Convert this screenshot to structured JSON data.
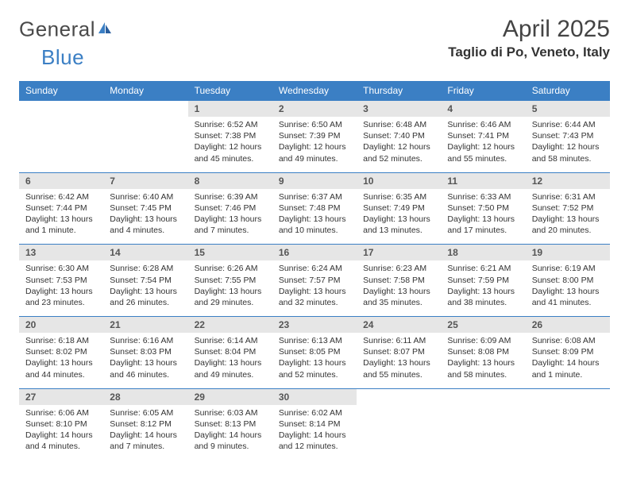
{
  "brand": {
    "general": "General",
    "blue": "Blue"
  },
  "title": "April 2025",
  "location": "Taglio di Po, Veneto, Italy",
  "colors": {
    "header_bg": "#3b7fc4",
    "header_text": "#ffffff",
    "daynum_bg": "#e6e6e6",
    "accent_line": "#3b7fc4",
    "text": "#333333",
    "logo_gray": "#4a4a4a",
    "logo_blue": "#3b7fc4"
  },
  "weekdays": [
    "Sunday",
    "Monday",
    "Tuesday",
    "Wednesday",
    "Thursday",
    "Friday",
    "Saturday"
  ],
  "weeks": [
    [
      null,
      null,
      {
        "n": "1",
        "sunrise": "Sunrise: 6:52 AM",
        "sunset": "Sunset: 7:38 PM",
        "daylight": "Daylight: 12 hours and 45 minutes."
      },
      {
        "n": "2",
        "sunrise": "Sunrise: 6:50 AM",
        "sunset": "Sunset: 7:39 PM",
        "daylight": "Daylight: 12 hours and 49 minutes."
      },
      {
        "n": "3",
        "sunrise": "Sunrise: 6:48 AM",
        "sunset": "Sunset: 7:40 PM",
        "daylight": "Daylight: 12 hours and 52 minutes."
      },
      {
        "n": "4",
        "sunrise": "Sunrise: 6:46 AM",
        "sunset": "Sunset: 7:41 PM",
        "daylight": "Daylight: 12 hours and 55 minutes."
      },
      {
        "n": "5",
        "sunrise": "Sunrise: 6:44 AM",
        "sunset": "Sunset: 7:43 PM",
        "daylight": "Daylight: 12 hours and 58 minutes."
      }
    ],
    [
      {
        "n": "6",
        "sunrise": "Sunrise: 6:42 AM",
        "sunset": "Sunset: 7:44 PM",
        "daylight": "Daylight: 13 hours and 1 minute."
      },
      {
        "n": "7",
        "sunrise": "Sunrise: 6:40 AM",
        "sunset": "Sunset: 7:45 PM",
        "daylight": "Daylight: 13 hours and 4 minutes."
      },
      {
        "n": "8",
        "sunrise": "Sunrise: 6:39 AM",
        "sunset": "Sunset: 7:46 PM",
        "daylight": "Daylight: 13 hours and 7 minutes."
      },
      {
        "n": "9",
        "sunrise": "Sunrise: 6:37 AM",
        "sunset": "Sunset: 7:48 PM",
        "daylight": "Daylight: 13 hours and 10 minutes."
      },
      {
        "n": "10",
        "sunrise": "Sunrise: 6:35 AM",
        "sunset": "Sunset: 7:49 PM",
        "daylight": "Daylight: 13 hours and 13 minutes."
      },
      {
        "n": "11",
        "sunrise": "Sunrise: 6:33 AM",
        "sunset": "Sunset: 7:50 PM",
        "daylight": "Daylight: 13 hours and 17 minutes."
      },
      {
        "n": "12",
        "sunrise": "Sunrise: 6:31 AM",
        "sunset": "Sunset: 7:52 PM",
        "daylight": "Daylight: 13 hours and 20 minutes."
      }
    ],
    [
      {
        "n": "13",
        "sunrise": "Sunrise: 6:30 AM",
        "sunset": "Sunset: 7:53 PM",
        "daylight": "Daylight: 13 hours and 23 minutes."
      },
      {
        "n": "14",
        "sunrise": "Sunrise: 6:28 AM",
        "sunset": "Sunset: 7:54 PM",
        "daylight": "Daylight: 13 hours and 26 minutes."
      },
      {
        "n": "15",
        "sunrise": "Sunrise: 6:26 AM",
        "sunset": "Sunset: 7:55 PM",
        "daylight": "Daylight: 13 hours and 29 minutes."
      },
      {
        "n": "16",
        "sunrise": "Sunrise: 6:24 AM",
        "sunset": "Sunset: 7:57 PM",
        "daylight": "Daylight: 13 hours and 32 minutes."
      },
      {
        "n": "17",
        "sunrise": "Sunrise: 6:23 AM",
        "sunset": "Sunset: 7:58 PM",
        "daylight": "Daylight: 13 hours and 35 minutes."
      },
      {
        "n": "18",
        "sunrise": "Sunrise: 6:21 AM",
        "sunset": "Sunset: 7:59 PM",
        "daylight": "Daylight: 13 hours and 38 minutes."
      },
      {
        "n": "19",
        "sunrise": "Sunrise: 6:19 AM",
        "sunset": "Sunset: 8:00 PM",
        "daylight": "Daylight: 13 hours and 41 minutes."
      }
    ],
    [
      {
        "n": "20",
        "sunrise": "Sunrise: 6:18 AM",
        "sunset": "Sunset: 8:02 PM",
        "daylight": "Daylight: 13 hours and 44 minutes."
      },
      {
        "n": "21",
        "sunrise": "Sunrise: 6:16 AM",
        "sunset": "Sunset: 8:03 PM",
        "daylight": "Daylight: 13 hours and 46 minutes."
      },
      {
        "n": "22",
        "sunrise": "Sunrise: 6:14 AM",
        "sunset": "Sunset: 8:04 PM",
        "daylight": "Daylight: 13 hours and 49 minutes."
      },
      {
        "n": "23",
        "sunrise": "Sunrise: 6:13 AM",
        "sunset": "Sunset: 8:05 PM",
        "daylight": "Daylight: 13 hours and 52 minutes."
      },
      {
        "n": "24",
        "sunrise": "Sunrise: 6:11 AM",
        "sunset": "Sunset: 8:07 PM",
        "daylight": "Daylight: 13 hours and 55 minutes."
      },
      {
        "n": "25",
        "sunrise": "Sunrise: 6:09 AM",
        "sunset": "Sunset: 8:08 PM",
        "daylight": "Daylight: 13 hours and 58 minutes."
      },
      {
        "n": "26",
        "sunrise": "Sunrise: 6:08 AM",
        "sunset": "Sunset: 8:09 PM",
        "daylight": "Daylight: 14 hours and 1 minute."
      }
    ],
    [
      {
        "n": "27",
        "sunrise": "Sunrise: 6:06 AM",
        "sunset": "Sunset: 8:10 PM",
        "daylight": "Daylight: 14 hours and 4 minutes."
      },
      {
        "n": "28",
        "sunrise": "Sunrise: 6:05 AM",
        "sunset": "Sunset: 8:12 PM",
        "daylight": "Daylight: 14 hours and 7 minutes."
      },
      {
        "n": "29",
        "sunrise": "Sunrise: 6:03 AM",
        "sunset": "Sunset: 8:13 PM",
        "daylight": "Daylight: 14 hours and 9 minutes."
      },
      {
        "n": "30",
        "sunrise": "Sunrise: 6:02 AM",
        "sunset": "Sunset: 8:14 PM",
        "daylight": "Daylight: 14 hours and 12 minutes."
      },
      null,
      null,
      null
    ]
  ]
}
